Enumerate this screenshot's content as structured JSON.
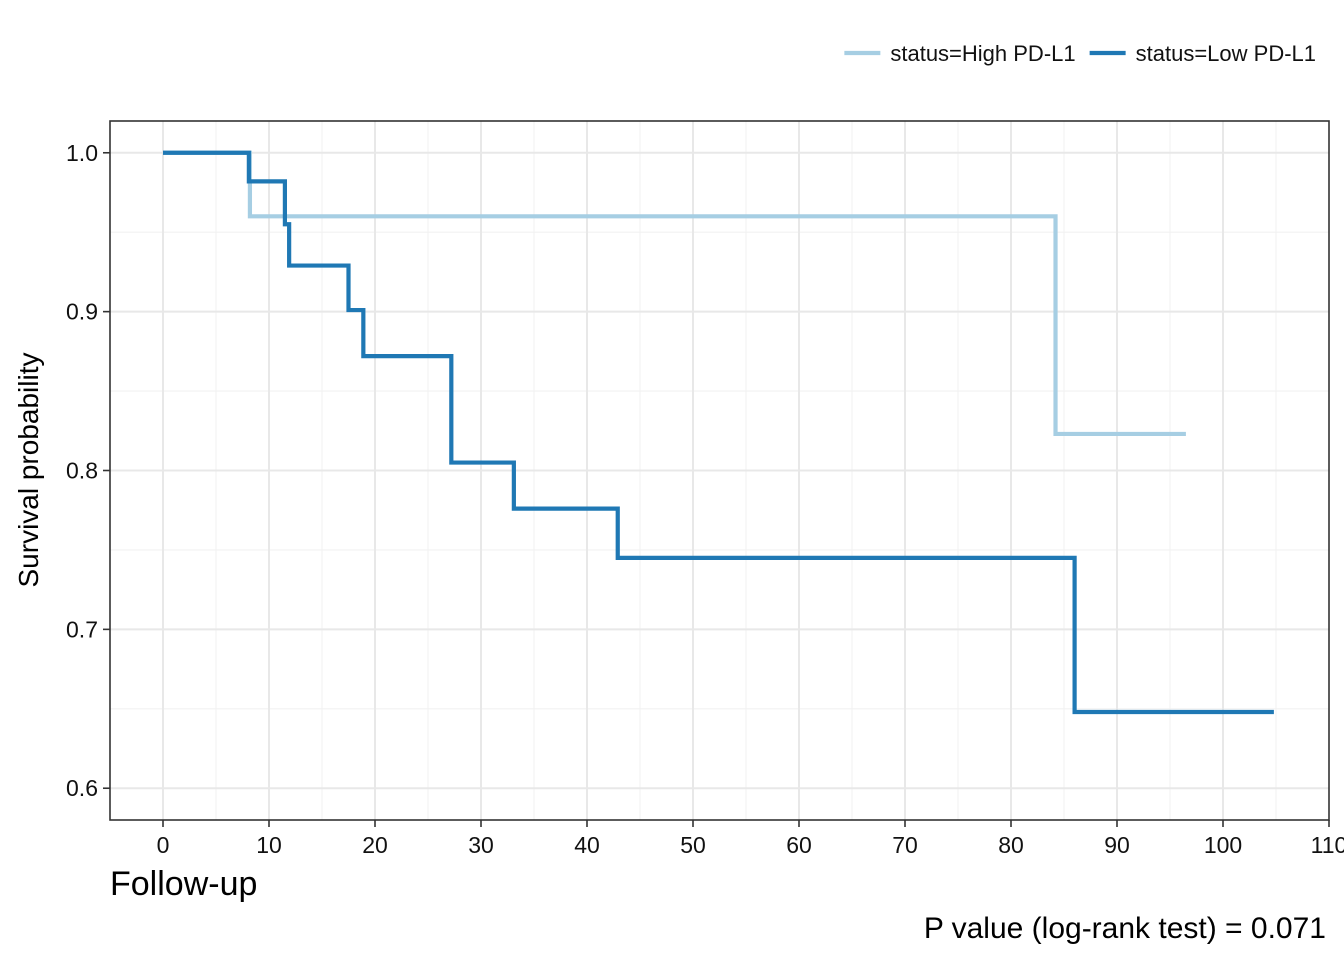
{
  "chart_data": {
    "type": "line",
    "subtype": "kaplan-meier step",
    "title": "",
    "xlabel": "Follow-up",
    "ylabel": "Survival probability",
    "xlim": [
      -5,
      110
    ],
    "ylim": [
      0.58,
      1.02
    ],
    "x_ticks": [
      0,
      10,
      20,
      30,
      40,
      50,
      60,
      70,
      80,
      90,
      100,
      110
    ],
    "x_tick_labels": [
      "0",
      "10",
      "20",
      "30",
      "40",
      "50",
      "60",
      "70",
      "80",
      "90",
      "100",
      "110"
    ],
    "y_ticks": [
      0.6,
      0.7,
      0.8,
      0.9,
      1.0
    ],
    "y_tick_labels": [
      "0.6",
      "0.7",
      "0.8",
      "0.9",
      "1.0"
    ],
    "grid": true,
    "legend_position": "top-right",
    "annotation": "P value (log-rank test) = 0.071",
    "series": [
      {
        "name": "status=High PD-L1",
        "color": "#a6cee3",
        "step_times": [
          0,
          8.2,
          84.2,
          96.5
        ],
        "step_values": [
          1.0,
          0.96,
          0.823,
          0.823
        ]
      },
      {
        "name": "status=Low PD-L1",
        "color": "#1f78b4",
        "step_times": [
          0,
          8.1,
          11.5,
          11.9,
          17.5,
          18.9,
          27.2,
          33.1,
          42.9,
          86.0,
          104.8
        ],
        "step_values": [
          1.0,
          0.982,
          0.955,
          0.929,
          0.901,
          0.872,
          0.805,
          0.776,
          0.745,
          0.648,
          0.648
        ]
      }
    ]
  }
}
